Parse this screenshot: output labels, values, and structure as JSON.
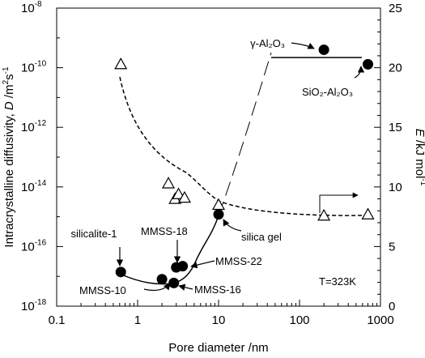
{
  "chart_data": {
    "type": "scatter",
    "xscale": "log",
    "xlabel": "Pore diameter /nm",
    "xlim": [
      0.1,
      1000
    ],
    "xticks": [
      {
        "value": 0.1,
        "label": "0.1"
      },
      {
        "value": 1,
        "label": "1"
      },
      {
        "value": 10,
        "label": "10"
      },
      {
        "value": 100,
        "label": "100"
      },
      {
        "value": 1000,
        "label": "1000"
      }
    ],
    "y_left": {
      "label": "Intracrystalline diffusivity, D /m²s⁻¹",
      "scale": "log",
      "lim": [
        1e-18,
        1e-08
      ],
      "ticks": [
        {
          "value": 1e-18,
          "base": "10",
          "exp": "-18"
        },
        {
          "value": 1e-16,
          "base": "10",
          "exp": "-16"
        },
        {
          "value": 1e-14,
          "base": "10",
          "exp": "-14"
        },
        {
          "value": 1e-12,
          "base": "10",
          "exp": "-12"
        },
        {
          "value": 1e-10,
          "base": "10",
          "exp": "-10"
        },
        {
          "value": 1e-08,
          "base": "10",
          "exp": "-8"
        }
      ]
    },
    "y_right": {
      "label": "E /kJ mol⁻¹",
      "scale": "linear",
      "lim": [
        0,
        25
      ],
      "ticks": [
        {
          "value": 0,
          "label": "0"
        },
        {
          "value": 5,
          "label": "5"
        },
        {
          "value": 10,
          "label": "10"
        },
        {
          "value": 15,
          "label": "15"
        },
        {
          "value": 20,
          "label": "20"
        },
        {
          "value": 25,
          "label": "25"
        }
      ]
    },
    "series": [
      {
        "marker": "filled-circle",
        "axis": "left",
        "points": [
          {
            "x": 0.62,
            "y": 1.4e-17
          },
          {
            "x": 2.0,
            "y": 8e-18
          },
          {
            "x": 2.8,
            "y": 6e-18
          },
          {
            "x": 3.0,
            "y": 2e-17
          },
          {
            "x": 3.6,
            "y": 2.2e-17
          },
          {
            "x": 10.0,
            "y": 1.2e-15
          },
          {
            "x": 200,
            "y": 4e-10
          },
          {
            "x": 700,
            "y": 1.3e-10
          }
        ]
      },
      {
        "marker": "open-triangle",
        "axis": "right",
        "points": [
          {
            "x": 0.62,
            "y": 20.3
          },
          {
            "x": 2.4,
            "y": 10.3
          },
          {
            "x": 2.9,
            "y": 9.0
          },
          {
            "x": 3.2,
            "y": 9.4
          },
          {
            "x": 3.8,
            "y": 9.1
          },
          {
            "x": 10.0,
            "y": 8.5
          },
          {
            "x": 200,
            "y": 7.6
          },
          {
            "x": 700,
            "y": 7.7
          }
        ]
      }
    ],
    "annotations": [
      {
        "text": "silicalite-1"
      },
      {
        "text": "MMSS-10"
      },
      {
        "text": "MMSS-16"
      },
      {
        "text": "MMSS-18"
      },
      {
        "text": "MMSS-22"
      },
      {
        "text": "silica gel"
      },
      {
        "text": "γ-Al₂O₃"
      },
      {
        "text": "SiO₂-Al₂O₃"
      },
      {
        "text": "T=323K"
      }
    ]
  }
}
